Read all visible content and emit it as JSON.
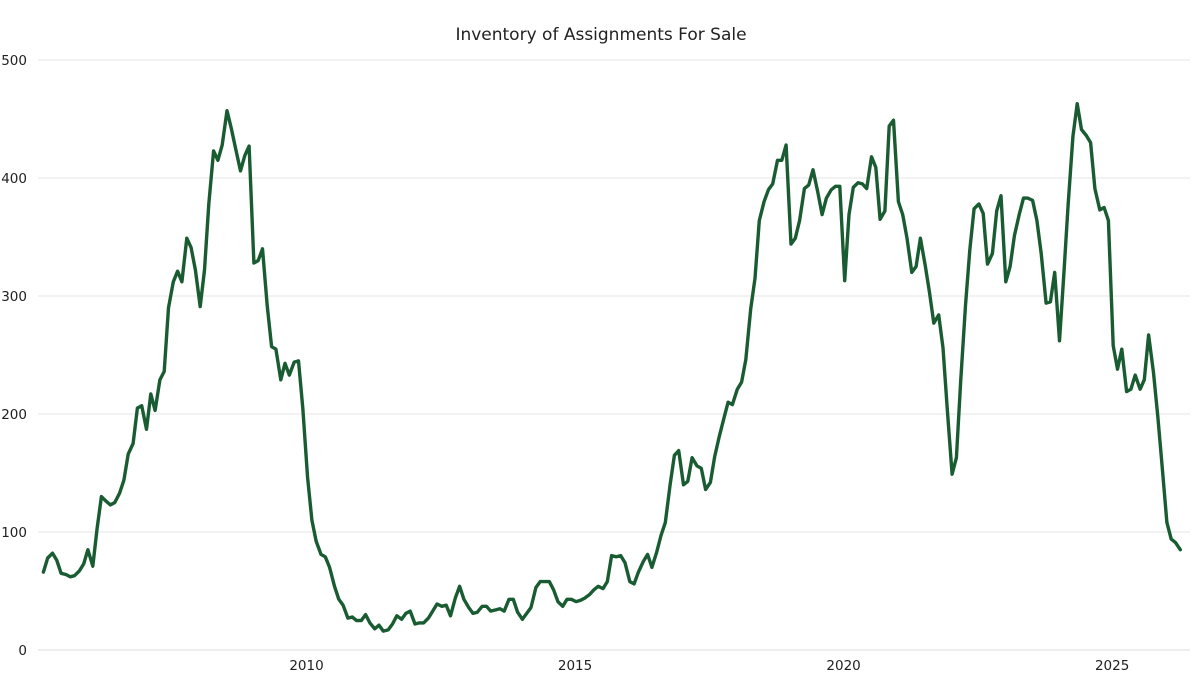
{
  "chart_data": {
    "type": "line",
    "title": "Inventory of Assignments For Sale",
    "xlabel": "",
    "ylabel": "",
    "xlim": [
      2005.0,
      2026.45
    ],
    "ylim": [
      0,
      500
    ],
    "yticks": [
      0,
      100,
      200,
      300,
      400,
      500
    ],
    "ytick_labels": [
      "0",
      "100",
      "200",
      "300",
      "400",
      "500"
    ],
    "xticks": [
      2010,
      2015,
      2020,
      2025
    ],
    "xtick_labels": [
      "2010",
      "2015",
      "2020",
      "2025"
    ],
    "grid": true,
    "legend": "none",
    "colors": {
      "line": "#1a5c32",
      "grid": "#e6e6e6",
      "text": "#222222"
    },
    "series": [
      {
        "name": "Inventory of Assignments For Sale",
        "x": [
          2005.1,
          2005.18,
          2005.27,
          2005.35,
          2005.43,
          2005.52,
          2005.6,
          2005.68,
          2005.77,
          2005.85,
          2005.93,
          2006.02,
          2006.1,
          2006.18,
          2006.27,
          2006.35,
          2006.43,
          2006.52,
          2006.6,
          2006.68,
          2006.77,
          2006.85,
          2006.93,
          2007.02,
          2007.1,
          2007.18,
          2007.27,
          2007.35,
          2007.43,
          2007.52,
          2007.6,
          2007.68,
          2007.77,
          2007.85,
          2007.93,
          2008.02,
          2008.1,
          2008.18,
          2008.27,
          2008.35,
          2008.43,
          2008.52,
          2008.6,
          2008.68,
          2008.77,
          2008.85,
          2008.93,
          2009.02,
          2009.1,
          2009.18,
          2009.27,
          2009.35,
          2009.43,
          2009.52,
          2009.6,
          2009.68,
          2009.77,
          2009.85,
          2009.93,
          2010.02,
          2010.1,
          2010.18,
          2010.27,
          2010.35,
          2010.43,
          2010.52,
          2010.6,
          2010.68,
          2010.77,
          2010.85,
          2010.93,
          2011.02,
          2011.1,
          2011.18,
          2011.27,
          2011.35,
          2011.43,
          2011.52,
          2011.6,
          2011.68,
          2011.77,
          2011.85,
          2011.93,
          2012.02,
          2012.1,
          2012.18,
          2012.27,
          2012.35,
          2012.43,
          2012.52,
          2012.6,
          2012.68,
          2012.77,
          2012.85,
          2012.93,
          2013.02,
          2013.1,
          2013.18,
          2013.27,
          2013.35,
          2013.43,
          2013.52,
          2013.6,
          2013.68,
          2013.77,
          2013.85,
          2013.93,
          2014.02,
          2014.1,
          2014.18,
          2014.27,
          2014.35,
          2014.43,
          2014.52,
          2014.6,
          2014.68,
          2014.77,
          2014.85,
          2014.93,
          2015.02,
          2015.1,
          2015.18,
          2015.27,
          2015.35,
          2015.43,
          2015.52,
          2015.6,
          2015.68,
          2015.77,
          2015.85,
          2015.93,
          2016.02,
          2016.1,
          2016.18,
          2016.27,
          2016.35,
          2016.43,
          2016.52,
          2016.6,
          2016.68,
          2016.77,
          2016.85,
          2016.93,
          2017.02,
          2017.1,
          2017.18,
          2017.27,
          2017.35,
          2017.43,
          2017.52,
          2017.6,
          2017.68,
          2017.77,
          2017.85,
          2017.93,
          2018.02,
          2018.1,
          2018.18,
          2018.27,
          2018.35,
          2018.43,
          2018.52,
          2018.6,
          2018.68,
          2018.77,
          2018.85,
          2018.93,
          2019.02,
          2019.1,
          2019.18,
          2019.27,
          2019.35,
          2019.43,
          2019.52,
          2019.6,
          2019.68,
          2019.77,
          2019.85,
          2019.93,
          2020.02,
          2020.1,
          2020.18,
          2020.27,
          2020.35,
          2020.43,
          2020.52,
          2020.6,
          2020.68,
          2020.77,
          2020.85,
          2020.93,
          2021.02,
          2021.1,
          2021.18,
          2021.27,
          2021.35,
          2021.43,
          2021.52,
          2021.6,
          2021.68,
          2021.77,
          2021.85,
          2021.93,
          2022.02,
          2022.1,
          2022.18,
          2022.27,
          2022.35,
          2022.43,
          2022.52,
          2022.6,
          2022.68,
          2022.77,
          2022.85,
          2022.93,
          2023.02,
          2023.1,
          2023.18,
          2023.27,
          2023.35,
          2023.43,
          2023.52,
          2023.6,
          2023.68,
          2023.77,
          2023.85,
          2023.93,
          2024.02,
          2024.1,
          2024.18,
          2024.27,
          2024.35,
          2024.43,
          2024.52,
          2024.6,
          2024.68,
          2024.77,
          2024.85,
          2024.93,
          2025.02,
          2025.1,
          2025.18,
          2025.27,
          2025.35,
          2025.43,
          2025.52,
          2025.6,
          2025.68,
          2025.77,
          2025.85,
          2025.93,
          2026.02,
          2026.1,
          2026.18,
          2026.27
        ],
        "values": [
          66,
          78,
          82,
          76,
          65,
          64,
          62,
          63,
          67,
          73,
          85,
          71,
          103,
          130,
          126,
          123,
          125,
          133,
          144,
          166,
          175,
          205,
          207,
          187,
          217,
          203,
          229,
          236,
          290,
          312,
          321,
          312,
          349,
          341,
          322,
          291,
          322,
          378,
          423,
          415,
          428,
          457,
          442,
          425,
          406,
          419,
          427,
          328,
          330,
          340,
          291,
          257,
          255,
          229,
          243,
          233,
          244,
          245,
          205,
          146,
          110,
          92,
          81,
          79,
          70,
          54,
          43,
          38,
          27,
          28,
          25,
          25,
          30,
          23,
          18,
          21,
          16,
          17,
          22,
          29,
          26,
          31,
          33,
          22,
          23,
          23,
          27,
          33,
          39,
          37,
          38,
          29,
          44,
          54,
          43,
          36,
          31,
          32,
          37,
          37,
          33,
          34,
          35,
          33,
          43,
          43,
          32,
          26,
          31,
          36,
          53,
          58,
          58,
          58,
          51,
          41,
          37,
          43,
          43,
          41,
          42,
          44,
          47,
          51,
          54,
          52,
          58,
          80,
          79,
          80,
          74,
          58,
          56,
          66,
          75,
          81,
          70,
          83,
          97,
          108,
          140,
          165,
          169,
          140,
          143,
          163,
          156,
          154,
          136,
          142,
          164,
          180,
          196,
          210,
          208,
          221,
          227,
          246,
          289,
          315,
          364,
          380,
          390,
          395,
          415,
          415,
          428,
          344,
          349,
          364,
          391,
          394,
          407,
          388,
          369,
          383,
          390,
          393,
          393,
          313,
          369,
          392,
          396,
          395,
          391,
          418,
          409,
          365,
          372,
          444,
          449,
          380,
          369,
          349,
          320,
          325,
          349,
          326,
          303,
          277,
          284,
          256,
          205,
          149,
          163,
          228,
          292,
          339,
          374,
          378,
          370,
          327,
          336,
          372,
          385,
          312,
          325,
          351,
          369,
          383,
          383,
          381,
          364,
          336,
          294,
          295,
          320,
          262,
          318,
          377,
          435,
          463,
          441,
          436,
          430,
          391,
          373,
          375,
          364,
          258,
          238,
          255,
          219,
          221,
          233,
          221,
          229,
          267,
          235,
          198,
          156,
          108,
          94,
          91,
          85
        ]
      }
    ]
  }
}
